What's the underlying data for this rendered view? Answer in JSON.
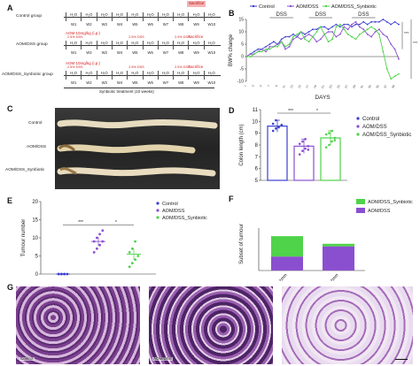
{
  "panels": {
    "A": "A",
    "B": "B",
    "C": "C",
    "D": "D",
    "E": "E",
    "F": "F",
    "G": "G"
  },
  "panel_a": {
    "top_label": "Sacrifice",
    "groups": [
      {
        "name": "Control group",
        "above": [],
        "weeks": [
          "H₂O",
          "H₂O",
          "H₂O",
          "H₂O",
          "H₂O",
          "H₂O",
          "H₂O",
          "H₂O",
          "H₂O",
          "H₂O"
        ],
        "week_ids": [
          "W1",
          "W2",
          "W3",
          "W4",
          "W5",
          "W6",
          "W7",
          "W8",
          "W9",
          "W10"
        ],
        "sacrifice": "Sacrifice"
      },
      {
        "name": "AOM/DSS group",
        "above": [
          "AOM 10mg/kg (i.p.)",
          "2.5% DSS",
          "2.5% DSS",
          "2.5% DSS"
        ],
        "weeks": [
          "H₂O",
          "H₂O",
          "H₂O",
          "H₂O",
          "H₂O",
          "H₂O",
          "H₂O",
          "H₂O",
          "H₂O",
          "H₂O"
        ],
        "week_ids": [
          "W1",
          "W2",
          "W3",
          "W4",
          "W5",
          "W6",
          "W7",
          "W8",
          "W9",
          "W10"
        ],
        "sacrifice": "Sacrifice"
      },
      {
        "name": "AOM/DSS_Synbiotic group",
        "above": [
          "AOM 10mg/kg (i.p.)",
          "2.5% DSS",
          "2.5% DSS",
          "2.5% DSS"
        ],
        "weeks": [
          "H₂O",
          "H₂O",
          "H₂O",
          "H₂O",
          "H₂O",
          "H₂O",
          "H₂O",
          "H₂O",
          "H₂O",
          "H₂O"
        ],
        "week_ids": [
          "W1",
          "W2",
          "W3",
          "W4",
          "W5",
          "W6",
          "W7",
          "W8",
          "W9",
          "W10"
        ],
        "sacrifice": "Sacrifice"
      }
    ],
    "treatment_label": "Synbiotic treatment (10 weeks)"
  },
  "panel_c": {
    "labels": [
      "Control",
      "AOM/DSS",
      "AOM/DSS_Synbiotic"
    ]
  },
  "panel_g": {
    "labels": [
      "Control",
      "AOM/DSS",
      ""
    ]
  },
  "colors": {
    "control": "#3b3fd0",
    "aomdss": "#8a4fcf",
    "synbiotic": "#4fd34a",
    "sacrifice_red": "#d21f1f"
  },
  "chart_data": [
    {
      "panel": "B",
      "type": "line",
      "ylabel": "BW% change",
      "xlabel": "DAYS",
      "ylim": [
        -10,
        15
      ],
      "yticks": [
        "-10",
        "-5",
        "0",
        "5",
        "10",
        "15"
      ],
      "annotations": [
        "DSS",
        "DSS",
        "DSS"
      ],
      "significance": [
        "***",
        "***"
      ],
      "x": [
        1,
        2,
        3,
        4,
        5,
        6,
        7,
        8,
        9,
        10,
        11,
        12,
        13,
        14,
        15,
        16,
        17,
        18,
        19,
        20,
        21,
        22,
        23,
        24,
        25,
        26,
        27,
        28,
        29,
        30,
        31,
        32,
        33,
        34,
        35,
        36,
        37,
        38,
        39,
        40
      ],
      "legend": [
        "Control",
        "AOM/DSS",
        "AOM/DSS_Synbiotic"
      ],
      "series": [
        {
          "name": "Control",
          "values": [
            0,
            1,
            2,
            3,
            3,
            4,
            5,
            6,
            5,
            7,
            8,
            8,
            9,
            8,
            10,
            9,
            10,
            11,
            11,
            12,
            12,
            11,
            12,
            13,
            12,
            13,
            13,
            12,
            13,
            13,
            14,
            13,
            14,
            14,
            14,
            15,
            14,
            13,
            14,
            13
          ]
        },
        {
          "name": "AOM/DSS",
          "values": [
            0,
            1,
            1,
            2,
            3,
            2,
            4,
            4,
            5,
            6,
            3,
            4,
            7,
            8,
            7,
            8,
            9,
            8,
            6,
            7,
            9,
            10,
            10,
            8,
            9,
            12,
            11,
            13,
            14,
            12,
            11,
            9,
            8,
            10,
            11,
            9,
            8,
            5,
            3,
            -1
          ]
        },
        {
          "name": "AOM/DSS_Synbiotic",
          "values": [
            0,
            0,
            1,
            2,
            2,
            3,
            3,
            4,
            4,
            6,
            4,
            5,
            8,
            9,
            10,
            7,
            6,
            8,
            10,
            12,
            9,
            6,
            7,
            12,
            13,
            11,
            9,
            8,
            7,
            9,
            10,
            11,
            12,
            11,
            9,
            2,
            -5,
            -9,
            -8,
            -7
          ]
        }
      ]
    },
    {
      "panel": "D",
      "type": "bar",
      "ylabel": "Colon length (cm)",
      "ylim": [
        5,
        11
      ],
      "yticks": [
        "5",
        "6",
        "7",
        "8",
        "9",
        "10",
        "11"
      ],
      "categories": [
        "Control",
        "AOM/DSS",
        "AOM/DSS_Synbiotic"
      ],
      "values": [
        9.6,
        7.9,
        8.6
      ],
      "errors": [
        0.5,
        0.6,
        0.6
      ],
      "significance": [
        "***",
        "*"
      ],
      "points": [
        [
          9.2,
          9.4,
          9.5,
          9.7,
          9.8,
          10.1
        ],
        [
          7.2,
          7.5,
          7.7,
          7.9,
          8.1,
          8.3,
          8.5,
          7.6
        ],
        [
          7.8,
          8.0,
          8.3,
          8.6,
          8.9,
          9.0,
          9.2,
          8.4
        ]
      ]
    },
    {
      "panel": "E",
      "type": "scatter",
      "ylabel": "Tumour number",
      "ylim": [
        0,
        20
      ],
      "yticks": [
        "0",
        "5",
        "10",
        "15",
        "20"
      ],
      "categories": [
        "Control",
        "AOM/DSS",
        "AOM/DSS_Synbiotic"
      ],
      "means": [
        0,
        9,
        5.5
      ],
      "errors": [
        0,
        1.2,
        1.5
      ],
      "significance": [
        "***",
        "*"
      ],
      "points": [
        [
          0,
          0,
          0,
          0,
          0,
          0,
          0
        ],
        [
          6,
          7,
          8,
          9,
          9,
          10,
          11,
          12
        ],
        [
          2,
          3,
          4,
          5,
          6,
          7,
          9
        ]
      ]
    },
    {
      "panel": "F",
      "type": "bar",
      "ylabel": "Subset of tumour",
      "categories": [
        "<2mm",
        ">2mm"
      ],
      "ylim": [
        0,
        10
      ],
      "series": [
        {
          "name": "AOM/DSS",
          "values": [
            3.3,
            5.7
          ]
        },
        {
          "name": "AOM/DSS_Synbiotic",
          "values": [
            4.8,
            0.6
          ]
        }
      ],
      "legend": [
        "AOM/DSS_Synbiotic",
        "AOM/DSS"
      ]
    }
  ]
}
